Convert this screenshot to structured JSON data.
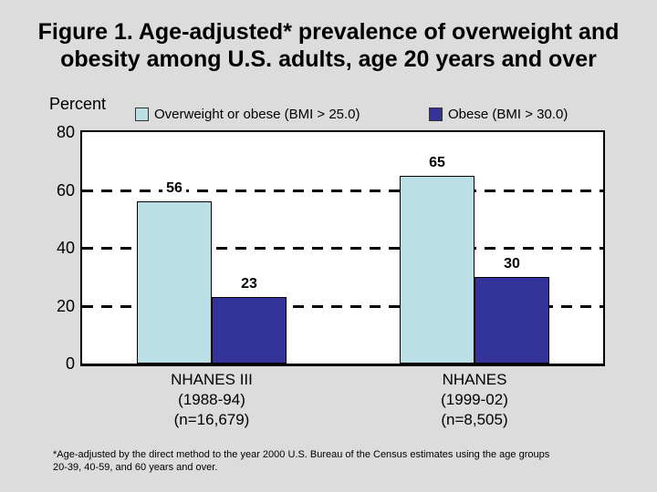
{
  "slide": {
    "title_line1": "Figure 1. Age-adjusted* prevalence of overweight and",
    "title_line2": "obesity among U.S. adults, age 20 years and over",
    "footnote_line1": "*Age-adjusted by the direct method to the year 2000 U.S. Bureau of the Census estimates using the age groups",
    "footnote_line2": "20-39, 40-59, and 60 years and over."
  },
  "chart_data": {
    "type": "bar",
    "title": "Figure 1. Age-adjusted* prevalence of overweight and obesity among U.S. adults, age 20 years and over",
    "ylabel": "Percent",
    "ylim": [
      0,
      80
    ],
    "yticks": [
      0,
      20,
      40,
      60,
      80
    ],
    "gridline_values": [
      20,
      40,
      60
    ],
    "grid_style": "dashed",
    "legend_position": "top",
    "categories": [
      "NHANES III (1988-94) (n=16,679)",
      "NHANES (1999-02) (n=8,505)"
    ],
    "category_label_lines": [
      [
        "NHANES III",
        "(1988-94)",
        "(n=16,679)"
      ],
      [
        "NHANES",
        "(1999-02)",
        "(n=8,505)"
      ]
    ],
    "series": [
      {
        "name": "Overweight or obese (BMI > 25.0)",
        "values": [
          56,
          65
        ],
        "color": "#BADFE5"
      },
      {
        "name": "Obese (BMI > 30.0)",
        "values": [
          23,
          30
        ],
        "color": "#333399"
      }
    ],
    "colors": {
      "background": "#DCDCDC",
      "plot_background": "#FFFFFF",
      "axis": "#000000",
      "text": "#000000"
    }
  }
}
